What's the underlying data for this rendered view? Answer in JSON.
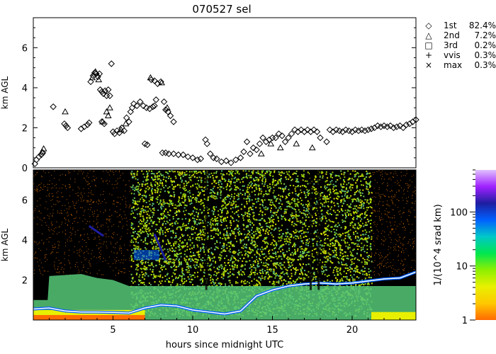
{
  "title": "070527 sel",
  "chart_data": [
    {
      "type": "scatter",
      "name": "cloud-base-heights",
      "ylabel": "km AGL",
      "xlim": [
        0,
        24
      ],
      "ylim": [
        0,
        7.5
      ],
      "yticks": [
        0,
        2,
        4,
        6
      ],
      "legend": {
        "placement": "right",
        "entries": [
          {
            "marker": "diamond",
            "symbol": "◇",
            "label": "1st",
            "value": "82.4%"
          },
          {
            "marker": "triangle",
            "symbol": "△",
            "label": "2nd",
            "value": "7.2%"
          },
          {
            "marker": "square",
            "symbol": "□",
            "label": "3rd",
            "value": "0.2%"
          },
          {
            "marker": "plus",
            "symbol": "+",
            "label": "vvis",
            "value": "0.3%"
          },
          {
            "marker": "cross",
            "symbol": "×",
            "label": "max",
            "value": "0.3%"
          }
        ]
      },
      "series": [
        {
          "marker": "diamond",
          "points": [
            [
              0.1,
              0.2
            ],
            [
              0.2,
              0.4
            ],
            [
              0.35,
              0.55
            ],
            [
              0.5,
              0.65
            ],
            [
              0.6,
              0.75
            ],
            [
              1.25,
              3.05
            ],
            [
              1.95,
              2.2
            ],
            [
              2.05,
              2.1
            ],
            [
              2.15,
              2.0
            ],
            [
              3.0,
              1.95
            ],
            [
              3.2,
              2.05
            ],
            [
              3.4,
              2.15
            ],
            [
              3.5,
              2.25
            ],
            [
              3.6,
              4.3
            ],
            [
              3.75,
              4.6
            ],
            [
              3.85,
              4.75
            ],
            [
              3.95,
              4.7
            ],
            [
              4.05,
              4.55
            ],
            [
              4.15,
              4.7
            ],
            [
              4.2,
              3.9
            ],
            [
              4.3,
              3.8
            ],
            [
              4.4,
              3.7
            ],
            [
              4.5,
              3.85
            ],
            [
              4.6,
              3.6
            ],
            [
              4.7,
              3.9
            ],
            [
              4.8,
              3.6
            ],
            [
              4.3,
              2.3
            ],
            [
              4.45,
              2.2
            ],
            [
              4.9,
              5.2
            ],
            [
              5.0,
              1.8
            ],
            [
              5.1,
              1.7
            ],
            [
              5.25,
              1.85
            ],
            [
              5.4,
              1.75
            ],
            [
              5.55,
              2.0
            ],
            [
              5.7,
              1.85
            ],
            [
              5.85,
              2.5
            ],
            [
              6.0,
              2.3
            ],
            [
              6.1,
              2.8
            ],
            [
              6.2,
              3.0
            ],
            [
              6.3,
              3.2
            ],
            [
              6.5,
              3.1
            ],
            [
              6.7,
              3.3
            ],
            [
              6.9,
              3.1
            ],
            [
              7.1,
              3.0
            ],
            [
              7.3,
              2.95
            ],
            [
              7.5,
              3.05
            ],
            [
              7.6,
              3.1
            ],
            [
              7.7,
              3.4
            ],
            [
              7.8,
              4.2
            ],
            [
              8.0,
              4.3
            ],
            [
              8.2,
              3.3
            ],
            [
              8.3,
              2.9
            ],
            [
              8.45,
              2.8
            ],
            [
              8.6,
              2.6
            ],
            [
              8.8,
              2.3
            ],
            [
              7.0,
              1.2
            ],
            [
              7.15,
              1.15
            ],
            [
              7.4,
              4.4
            ],
            [
              7.6,
              4.35
            ],
            [
              8.1,
              0.75
            ],
            [
              8.3,
              0.75
            ],
            [
              8.5,
              0.7
            ],
            [
              8.8,
              0.7
            ],
            [
              9.1,
              0.65
            ],
            [
              9.4,
              0.65
            ],
            [
              9.7,
              0.55
            ],
            [
              10.0,
              0.5
            ],
            [
              10.3,
              0.4
            ],
            [
              10.5,
              0.45
            ],
            [
              10.8,
              1.4
            ],
            [
              10.9,
              1.2
            ],
            [
              11.1,
              0.7
            ],
            [
              11.3,
              0.5
            ],
            [
              11.5,
              0.45
            ],
            [
              11.8,
              0.3
            ],
            [
              12.1,
              0.35
            ],
            [
              12.4,
              0.25
            ],
            [
              12.7,
              0.4
            ],
            [
              13.0,
              0.5
            ],
            [
              13.2,
              0.8
            ],
            [
              13.4,
              1.3
            ],
            [
              13.6,
              0.7
            ],
            [
              13.8,
              1.0
            ],
            [
              14.0,
              0.9
            ],
            [
              14.2,
              1.2
            ],
            [
              14.4,
              1.5
            ],
            [
              14.6,
              1.3
            ],
            [
              14.8,
              1.4
            ],
            [
              15.0,
              1.5
            ],
            [
              15.2,
              1.5
            ],
            [
              15.4,
              1.7
            ],
            [
              15.6,
              1.6
            ],
            [
              15.8,
              1.3
            ],
            [
              16.0,
              1.5
            ],
            [
              16.2,
              1.7
            ],
            [
              16.4,
              1.9
            ],
            [
              16.6,
              1.8
            ],
            [
              16.8,
              1.9
            ],
            [
              17.0,
              1.8
            ],
            [
              17.2,
              1.9
            ],
            [
              17.4,
              1.8
            ],
            [
              17.6,
              1.9
            ],
            [
              17.8,
              1.8
            ],
            [
              18.0,
              1.5
            ],
            [
              18.4,
              1.3
            ],
            [
              18.6,
              1.9
            ],
            [
              18.8,
              1.8
            ],
            [
              19.0,
              1.9
            ],
            [
              19.2,
              1.85
            ],
            [
              19.4,
              1.8
            ],
            [
              19.6,
              1.9
            ],
            [
              19.8,
              1.85
            ],
            [
              20.0,
              1.8
            ],
            [
              20.2,
              1.9
            ],
            [
              20.4,
              1.85
            ],
            [
              20.6,
              1.9
            ],
            [
              20.8,
              1.85
            ],
            [
              21.0,
              1.9
            ],
            [
              21.2,
              1.95
            ],
            [
              21.4,
              2.0
            ],
            [
              21.6,
              2.1
            ],
            [
              21.8,
              2.05
            ],
            [
              22.0,
              2.1
            ],
            [
              22.2,
              2.05
            ],
            [
              22.4,
              2.1
            ],
            [
              22.6,
              2.0
            ],
            [
              22.8,
              2.05
            ],
            [
              23.0,
              2.1
            ],
            [
              23.2,
              2.0
            ],
            [
              23.4,
              2.15
            ],
            [
              23.6,
              2.2
            ],
            [
              23.8,
              2.3
            ],
            [
              24.0,
              2.4
            ]
          ]
        },
        {
          "marker": "triangle",
          "points": [
            [
              0.55,
              0.8
            ],
            [
              0.65,
              0.95
            ],
            [
              2.0,
              2.8
            ],
            [
              3.7,
              4.5
            ],
            [
              3.9,
              4.8
            ],
            [
              4.1,
              4.4
            ],
            [
              4.35,
              2.3
            ],
            [
              4.6,
              2.8
            ],
            [
              4.7,
              2.6
            ],
            [
              4.8,
              3.0
            ],
            [
              5.5,
              1.9
            ],
            [
              5.8,
              2.2
            ],
            [
              7.35,
              4.5
            ],
            [
              8.05,
              4.25
            ],
            [
              8.4,
              3.0
            ],
            [
              14.3,
              0.7
            ],
            [
              14.9,
              1.2
            ],
            [
              15.5,
              1.0
            ],
            [
              16.5,
              1.2
            ],
            [
              17.5,
              1.0
            ]
          ]
        }
      ]
    },
    {
      "type": "heatmap",
      "name": "backscatter-time-height",
      "xlabel": "hours since midnight UTC",
      "ylabel": "km AGL",
      "xlim": [
        0,
        24
      ],
      "ylim": [
        0,
        7.5
      ],
      "xticks": [
        5,
        10,
        15,
        20
      ],
      "yticks": [
        2,
        4,
        6
      ],
      "colorbar": {
        "label": "1/(10^4 srad km)",
        "scale": "log",
        "range": [
          1,
          600
        ],
        "ticks": [
          1,
          10,
          100
        ],
        "tick_labels": [
          "1",
          "10",
          "100"
        ],
        "colors": [
          "#ff6a00",
          "#ffc800",
          "#e8f000",
          "#8cf000",
          "#00e650",
          "#00c8c8",
          "#0060ff",
          "#1e1ea0",
          "#a020ff",
          "#e0c0ff"
        ]
      },
      "cloud_base_km": [
        [
          0,
          0.55
        ],
        [
          1,
          0.6
        ],
        [
          2,
          0.45
        ],
        [
          3,
          0.4
        ],
        [
          4,
          0.4
        ],
        [
          5,
          0.38
        ],
        [
          6,
          0.35
        ],
        [
          7,
          0.6
        ],
        [
          8,
          0.75
        ],
        [
          9,
          0.7
        ],
        [
          10,
          0.5
        ],
        [
          11,
          0.4
        ],
        [
          12,
          0.3
        ],
        [
          13,
          0.45
        ],
        [
          14,
          1.2
        ],
        [
          15,
          1.5
        ],
        [
          16,
          1.7
        ],
        [
          17,
          1.8
        ],
        [
          18,
          1.85
        ],
        [
          19,
          1.8
        ],
        [
          20,
          1.85
        ],
        [
          21,
          1.95
        ],
        [
          22,
          2.05
        ],
        [
          23,
          2.1
        ],
        [
          24,
          2.4
        ]
      ],
      "aerosol_top_km": [
        [
          0,
          1.0
        ],
        [
          0.9,
          1.0
        ],
        [
          1.0,
          2.2
        ],
        [
          3,
          2.3
        ],
        [
          4,
          2.1
        ],
        [
          5,
          2.0
        ],
        [
          6,
          1.7
        ],
        [
          24,
          1.7
        ]
      ],
      "cirrus_patch": {
        "x0": 6.3,
        "x1": 7.9,
        "base_km": 3.0,
        "top_km": 3.5
      },
      "bright_segments": [
        {
          "x0": 3.5,
          "x1": 4.4,
          "base_km": 4.7,
          "top_km": 4.2
        },
        {
          "x0": 7.6,
          "x1": 8.3,
          "base_km": 4.3,
          "top_km": 3.0
        }
      ],
      "noise_window": [
        6.1,
        21.2
      ],
      "dark_stripes": [
        10.85,
        17.4,
        17.9
      ]
    }
  ]
}
